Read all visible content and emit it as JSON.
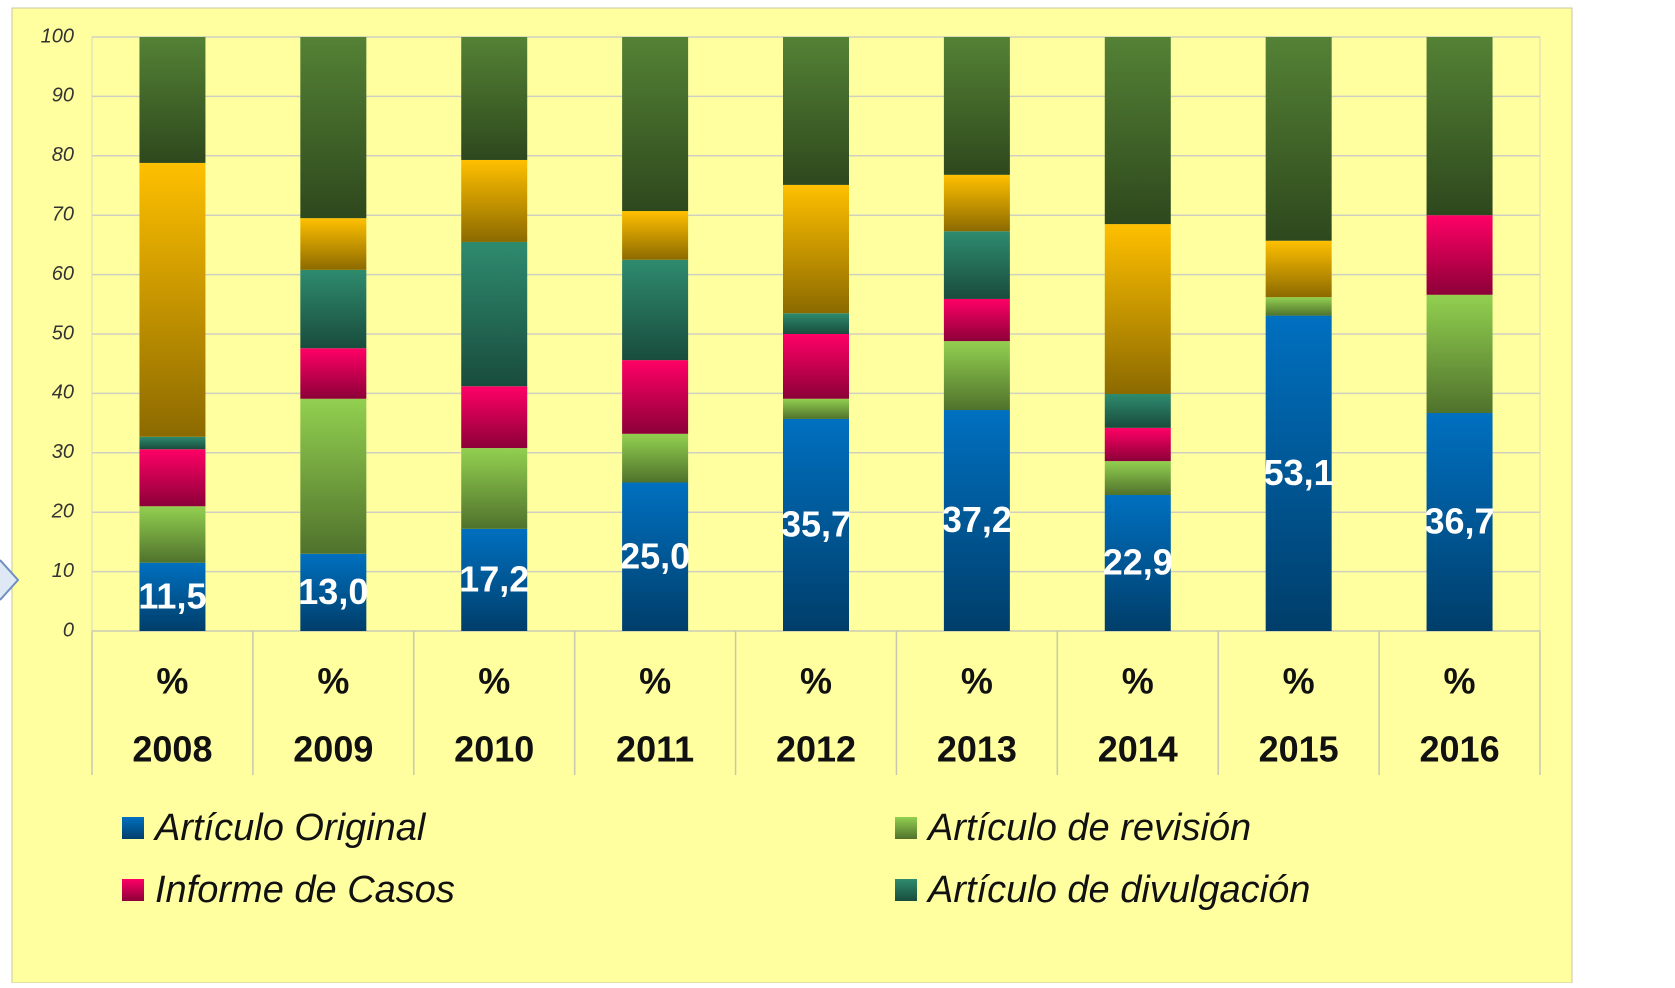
{
  "chart_data": {
    "type": "stacked_bar",
    "categories": [
      [
        "%",
        "2008"
      ],
      [
        "%",
        "2009"
      ],
      [
        "%",
        "2010"
      ],
      [
        "%",
        "2011"
      ],
      [
        "%",
        "2012"
      ],
      [
        "%",
        "2013"
      ],
      [
        "%",
        "2014"
      ],
      [
        "%",
        "2015"
      ],
      [
        "%",
        "2016"
      ]
    ],
    "ylim": [
      0,
      100
    ],
    "yticks": [
      0,
      10,
      20,
      30,
      40,
      50,
      60,
      70,
      80,
      90,
      100
    ],
    "grid": true,
    "legend": "bottom",
    "series": [
      {
        "name": "Artículo Original",
        "color": "#0070c0",
        "values": [
          11.5,
          13.0,
          17.2,
          25.0,
          35.7,
          37.2,
          22.9,
          53.1,
          36.7
        ],
        "value_labels": [
          "11,5",
          "13,0",
          "17,2",
          "25,0",
          "35,7",
          "37,2",
          "22,9",
          "53,1",
          "36,7"
        ]
      },
      {
        "name": "Artículo de revisión",
        "color": "#92d050",
        "values": [
          9.5,
          26.1,
          13.6,
          8.2,
          3.4,
          11.6,
          5.7,
          3.1,
          19.9
        ]
      },
      {
        "name": "Informe de Casos",
        "color": "#ff0066",
        "values": [
          9.6,
          8.5,
          10.4,
          12.4,
          10.9,
          7.1,
          5.6,
          0,
          13.4
        ]
      },
      {
        "name": "Artículo de divulgación",
        "color": "#2e8b6e",
        "values": [
          2.1,
          13.2,
          24.3,
          16.9,
          3.5,
          11.4,
          5.7,
          0,
          0
        ]
      },
      {
        "color": "#ffc000",
        "values": [
          46.1,
          8.7,
          13.8,
          8.2,
          21.6,
          9.5,
          28.6,
          9.5,
          0
        ]
      },
      {
        "color": "#548235",
        "values": [
          21.2,
          30.5,
          20.7,
          29.3,
          24.9,
          23.2,
          31.5,
          34.3,
          30.0
        ]
      }
    ]
  }
}
